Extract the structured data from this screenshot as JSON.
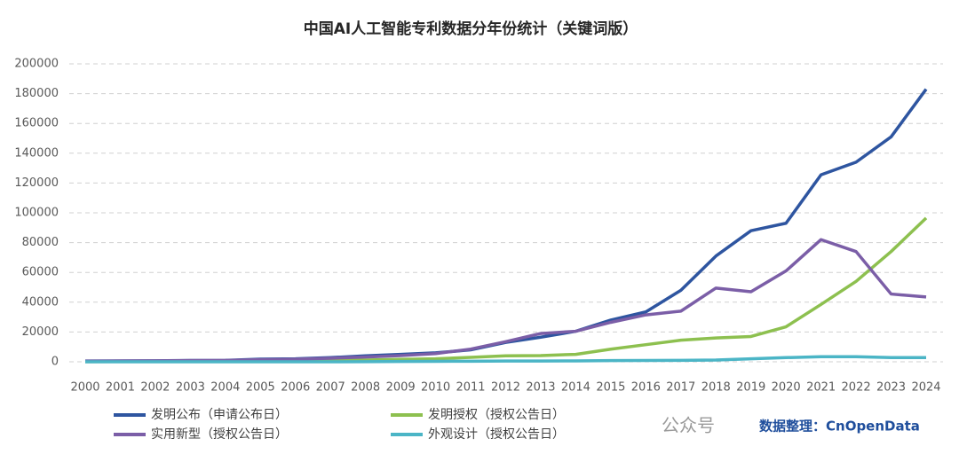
{
  "chart_data": {
    "type": "line",
    "title": "中国AI人工智能专利数据分年份统计（关键词版）",
    "categories": [
      "2000",
      "2001",
      "2002",
      "2003",
      "2004",
      "2005",
      "2006",
      "2007",
      "2008",
      "2009",
      "2010",
      "2011",
      "2012",
      "2013",
      "2014",
      "2015",
      "2016",
      "2017",
      "2018",
      "2019",
      "2020",
      "2021",
      "2022",
      "2023",
      "2024"
    ],
    "series": [
      {
        "name": "发明公布（申请公布日）",
        "color": "#2e55a0",
        "values": [
          500,
          600,
          700,
          900,
          1000,
          1800,
          2000,
          2800,
          4000,
          5000,
          6000,
          8000,
          13000,
          16500,
          20500,
          28000,
          33500,
          48000,
          71000,
          88000,
          93000,
          125500,
          134000,
          151000,
          183000
        ]
      },
      {
        "name": "发明授权（授权公告日）",
        "color": "#8dc04f",
        "values": [
          100,
          150,
          200,
          300,
          400,
          500,
          700,
          900,
          1200,
          1600,
          2000,
          3000,
          4000,
          4200,
          5000,
          8500,
          11500,
          14500,
          16000,
          17000,
          23500,
          38500,
          54000,
          74000,
          96500
        ]
      },
      {
        "name": "实用新型（授权公告日）",
        "color": "#7b5ea7",
        "values": [
          400,
          500,
          600,
          800,
          900,
          1400,
          1700,
          2400,
          3200,
          4200,
          5500,
          8500,
          13500,
          19000,
          20500,
          26500,
          31500,
          34000,
          49500,
          47000,
          61000,
          82000,
          74000,
          45500,
          43500
        ]
      },
      {
        "name": "外观设计（授权公告日）",
        "color": "#4bb5c6",
        "values": [
          0,
          0,
          0,
          0,
          0,
          0,
          0,
          0,
          100,
          200,
          300,
          400,
          500,
          500,
          600,
          800,
          900,
          1000,
          1200,
          2000,
          2800,
          3400,
          3400,
          2800,
          2800
        ]
      }
    ],
    "ylim": [
      0,
      200000
    ],
    "yticks": [
      0,
      20000,
      40000,
      60000,
      80000,
      100000,
      120000,
      140000,
      160000,
      180000,
      200000
    ],
    "grid": true,
    "legend": "bottom",
    "watermark": "公众号",
    "annotation": "数据整理：CnOpenData"
  }
}
